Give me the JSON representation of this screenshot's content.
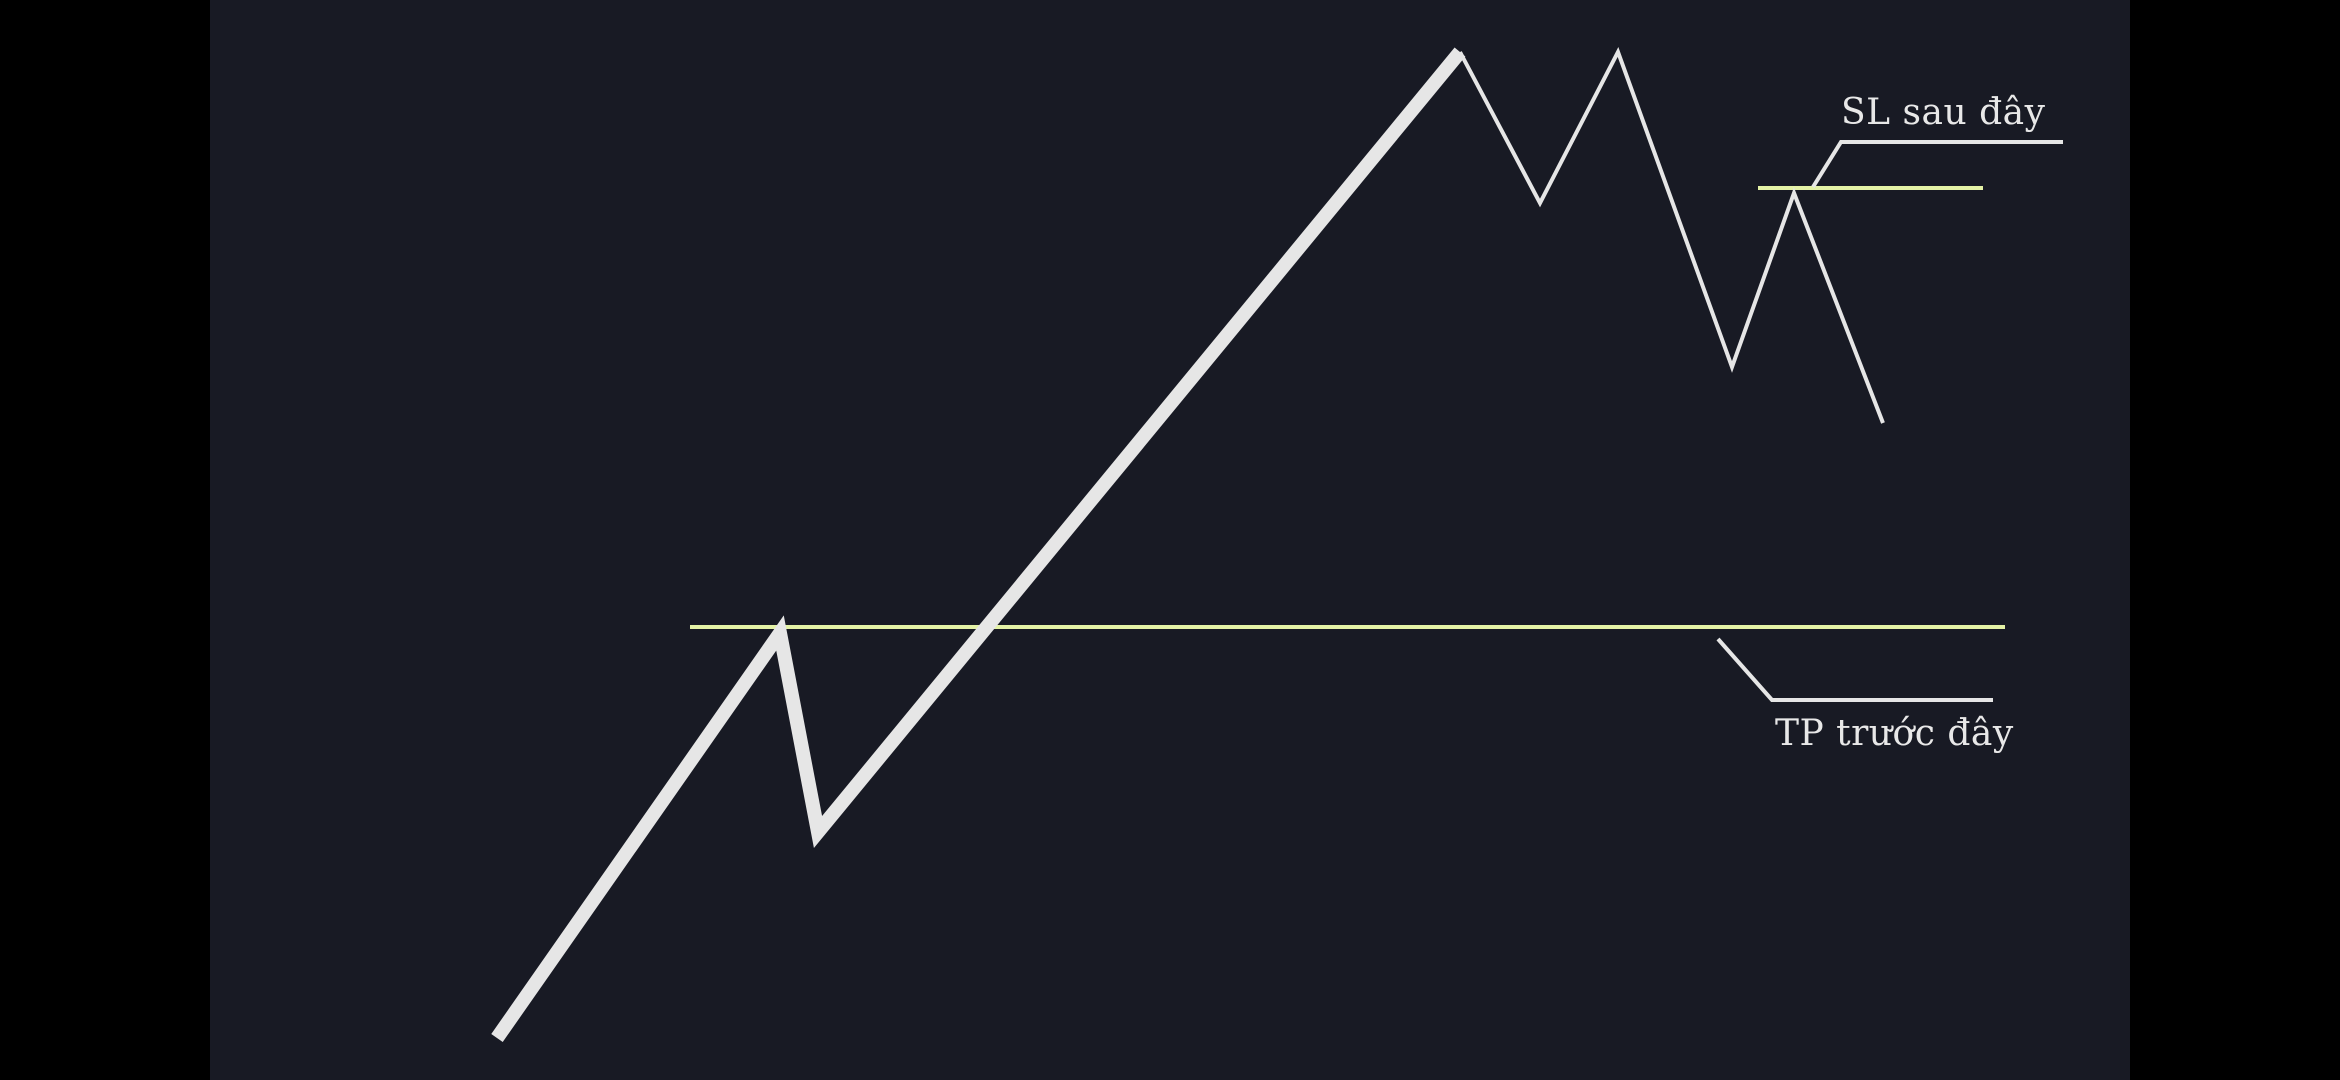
{
  "colors": {
    "screen_background": "#000000",
    "canvas_background": "#181a24",
    "price_line": "#e6e6e6",
    "level_line": "#e4f2a6",
    "label_text": "#e8e8e8",
    "label_leader": "#e6e6e6"
  },
  "labels": {
    "stop_loss": "SL sau đây",
    "take_profit": "TP trước đây"
  }
}
